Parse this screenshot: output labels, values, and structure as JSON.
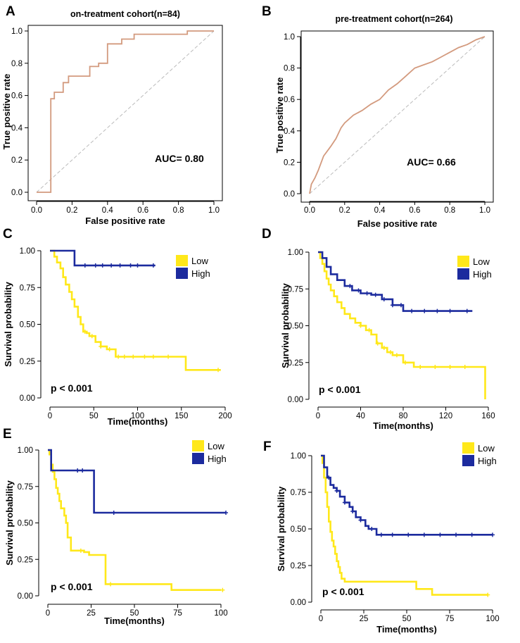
{
  "figure_labels": [
    "A",
    "B",
    "C",
    "D",
    "E",
    "F"
  ],
  "colors": {
    "roc": "#d39a7e",
    "diagonal": "#bbbbbb",
    "low": "#ffe81a",
    "high": "#1c2b9e",
    "axis": "#000000"
  },
  "chart_data": [
    {
      "panel": "A",
      "type": "line",
      "subtype": "roc",
      "title": "on-treatment cohort(n=84)",
      "xlabel": "False positive rate",
      "ylabel": "True positive rate",
      "xlim": [
        0,
        1
      ],
      "ylim": [
        0,
        1
      ],
      "xticks": [
        "0.0",
        "0.2",
        "0.4",
        "0.6",
        "0.8",
        "1.0"
      ],
      "yticks": [
        "0.0",
        "0.2",
        "0.4",
        "0.6",
        "0.8",
        "1.0"
      ],
      "annotation": "AUC= 0.80",
      "series": [
        {
          "name": "ROC",
          "x": [
            0,
            0.08,
            0.08,
            0.1,
            0.1,
            0.15,
            0.15,
            0.18,
            0.18,
            0.22,
            0.22,
            0.3,
            0.3,
            0.35,
            0.35,
            0.4,
            0.4,
            0.43,
            0.43,
            0.48,
            0.48,
            0.55,
            0.55,
            0.85,
            0.85,
            1.0
          ],
          "y": [
            0,
            0,
            0.58,
            0.58,
            0.62,
            0.62,
            0.68,
            0.68,
            0.72,
            0.72,
            0.72,
            0.72,
            0.78,
            0.78,
            0.8,
            0.8,
            0.92,
            0.92,
            0.92,
            0.92,
            0.95,
            0.95,
            0.98,
            0.98,
            1.0,
            1.0
          ]
        },
        {
          "name": "reference",
          "x": [
            0,
            1
          ],
          "y": [
            0,
            1
          ]
        }
      ]
    },
    {
      "panel": "B",
      "type": "line",
      "subtype": "roc",
      "title": "pre-treatment cohort(n=264)",
      "xlabel": "False positive rate",
      "ylabel": "True positive rate",
      "xlim": [
        0,
        1
      ],
      "ylim": [
        0,
        1
      ],
      "xticks": [
        "0.0",
        "0.2",
        "0.4",
        "0.6",
        "0.8",
        "1.0"
      ],
      "yticks": [
        "0.0",
        "0.2",
        "0.4",
        "0.6",
        "0.8",
        "1.0"
      ],
      "annotation": "AUC= 0.66",
      "series": [
        {
          "name": "ROC",
          "x": [
            0,
            0.01,
            0.03,
            0.05,
            0.08,
            0.1,
            0.12,
            0.15,
            0.18,
            0.2,
            0.25,
            0.3,
            0.35,
            0.4,
            0.45,
            0.5,
            0.55,
            0.6,
            0.65,
            0.7,
            0.75,
            0.8,
            0.85,
            0.9,
            0.95,
            1.0
          ],
          "y": [
            0,
            0.06,
            0.1,
            0.15,
            0.24,
            0.27,
            0.3,
            0.35,
            0.42,
            0.45,
            0.5,
            0.53,
            0.57,
            0.6,
            0.66,
            0.7,
            0.75,
            0.8,
            0.82,
            0.84,
            0.87,
            0.9,
            0.93,
            0.95,
            0.98,
            1.0
          ]
        },
        {
          "name": "reference",
          "x": [
            0,
            1
          ],
          "y": [
            0,
            1
          ]
        }
      ]
    },
    {
      "panel": "C",
      "type": "line",
      "subtype": "kaplan-meier",
      "xlabel": "Time(months)",
      "ylabel": "Survival probability",
      "xlim": [
        0,
        200
      ],
      "ylim": [
        0,
        1
      ],
      "xticks": [
        "0",
        "50",
        "100",
        "150",
        "200"
      ],
      "yticks": [
        "0.00",
        "0.25",
        "0.50",
        "0.75",
        "1.00"
      ],
      "annotation": "p < 0.001",
      "legend_position": "top-right",
      "series": [
        {
          "name": "Low",
          "x": [
            0,
            5,
            8,
            12,
            15,
            18,
            22,
            25,
            28,
            32,
            35,
            38,
            42,
            45,
            52,
            58,
            65,
            75,
            155,
            195
          ],
          "y": [
            1.0,
            0.96,
            0.92,
            0.88,
            0.82,
            0.77,
            0.72,
            0.67,
            0.62,
            0.55,
            0.5,
            0.45,
            0.44,
            0.42,
            0.38,
            0.35,
            0.33,
            0.28,
            0.19,
            0.19
          ],
          "censor_x": [
            40,
            48,
            58,
            68,
            78,
            85,
            95,
            108,
            118,
            135,
            192
          ]
        },
        {
          "name": "High",
          "x": [
            0,
            28,
            120
          ],
          "y": [
            1.0,
            0.9,
            0.9
          ],
          "censor_x": [
            40,
            52,
            60,
            70,
            80,
            92,
            100,
            118
          ]
        }
      ]
    },
    {
      "panel": "D",
      "type": "line",
      "subtype": "kaplan-meier",
      "xlabel": "Time(months)",
      "ylabel": "Survival probability",
      "xlim": [
        0,
        160
      ],
      "ylim": [
        0,
        1
      ],
      "xticks": [
        "0",
        "40",
        "80",
        "120",
        "160"
      ],
      "yticks": [
        "0.00",
        "0.25",
        "0.50",
        "0.75",
        "1.00"
      ],
      "annotation": "p < 0.001",
      "legend_position": "top-right",
      "series": [
        {
          "name": "Low",
          "x": [
            0,
            2,
            4,
            6,
            8,
            10,
            12,
            15,
            18,
            22,
            25,
            30,
            35,
            40,
            45,
            50,
            55,
            60,
            65,
            70,
            80,
            90,
            155,
            157
          ],
          "y": [
            1.0,
            0.96,
            0.92,
            0.87,
            0.82,
            0.78,
            0.74,
            0.7,
            0.66,
            0.62,
            0.58,
            0.55,
            0.52,
            0.5,
            0.47,
            0.44,
            0.38,
            0.35,
            0.32,
            0.3,
            0.25,
            0.22,
            0.22,
            0.0
          ],
          "censor_x": [
            40,
            48,
            56,
            62,
            68,
            74,
            82,
            96,
            110,
            124,
            138
          ]
        },
        {
          "name": "High",
          "x": [
            0,
            4,
            8,
            12,
            18,
            25,
            32,
            40,
            50,
            60,
            70,
            80,
            145
          ],
          "y": [
            1.0,
            0.96,
            0.9,
            0.85,
            0.81,
            0.77,
            0.74,
            0.72,
            0.71,
            0.68,
            0.64,
            0.6,
            0.6
          ],
          "censor_x": [
            30,
            38,
            46,
            54,
            62,
            70,
            78,
            88,
            100,
            112,
            124,
            140
          ]
        }
      ]
    },
    {
      "panel": "E",
      "type": "line",
      "subtype": "kaplan-meier",
      "xlabel": "Time(months)",
      "ylabel": "Survival probability",
      "xlim": [
        0,
        105
      ],
      "ylim": [
        0,
        1
      ],
      "xticks": [
        "0",
        "25",
        "50",
        "75",
        "100"
      ],
      "yticks": [
        "0.00",
        "0.25",
        "0.50",
        "0.75",
        "1.00"
      ],
      "annotation": "p < 0.001",
      "legend_position": "top-right",
      "series": [
        {
          "name": "Low",
          "x": [
            0,
            1,
            2,
            3,
            4,
            5,
            6,
            7,
            8,
            10,
            11,
            12,
            14,
            22,
            25,
            34,
            35,
            70,
            75,
            105
          ],
          "y": [
            1.0,
            0.97,
            0.9,
            0.85,
            0.8,
            0.74,
            0.7,
            0.65,
            0.6,
            0.55,
            0.5,
            0.4,
            0.31,
            0.3,
            0.28,
            0.28,
            0.08,
            0.08,
            0.04,
            0.04
          ],
          "censor_x": [
            20,
            38,
            106
          ]
        },
        {
          "name": "High",
          "x": [
            0,
            2,
            28,
            108
          ],
          "y": [
            1.0,
            0.86,
            0.57,
            0.57
          ],
          "censor_x": [
            18,
            21,
            40,
            108
          ]
        }
      ]
    },
    {
      "panel": "F",
      "type": "line",
      "subtype": "kaplan-meier",
      "xlabel": "Time(months)",
      "ylabel": "Survival probability",
      "xlim": [
        0,
        108
      ],
      "ylim": [
        0,
        1
      ],
      "xticks": [
        "0",
        "25",
        "50",
        "75",
        "100"
      ],
      "yticks": [
        "0.00",
        "0.25",
        "0.50",
        "0.75",
        "1.00"
      ],
      "annotation": "p < 0.001",
      "legend_position": "top-right",
      "series": [
        {
          "name": "Low",
          "x": [
            0,
            1,
            2,
            3,
            4,
            5,
            6,
            7,
            8,
            9,
            10,
            11,
            12,
            13,
            15,
            18,
            60,
            70,
            105
          ],
          "y": [
            1.0,
            0.95,
            0.85,
            0.75,
            0.65,
            0.55,
            0.48,
            0.42,
            0.38,
            0.33,
            0.28,
            0.24,
            0.2,
            0.16,
            0.14,
            0.14,
            0.09,
            0.05,
            0.05
          ],
          "censor_x": [
            105
          ]
        },
        {
          "name": "High",
          "x": [
            0,
            2,
            4,
            6,
            8,
            10,
            12,
            15,
            18,
            20,
            22,
            25,
            28,
            30,
            35,
            40,
            108
          ],
          "y": [
            1.0,
            0.92,
            0.85,
            0.8,
            0.78,
            0.76,
            0.72,
            0.68,
            0.65,
            0.62,
            0.58,
            0.56,
            0.52,
            0.5,
            0.46,
            0.46,
            0.46
          ],
          "censor_x": [
            5,
            10,
            15,
            20,
            25,
            32,
            38,
            45,
            55,
            65,
            75,
            85,
            95,
            108
          ]
        }
      ]
    }
  ]
}
